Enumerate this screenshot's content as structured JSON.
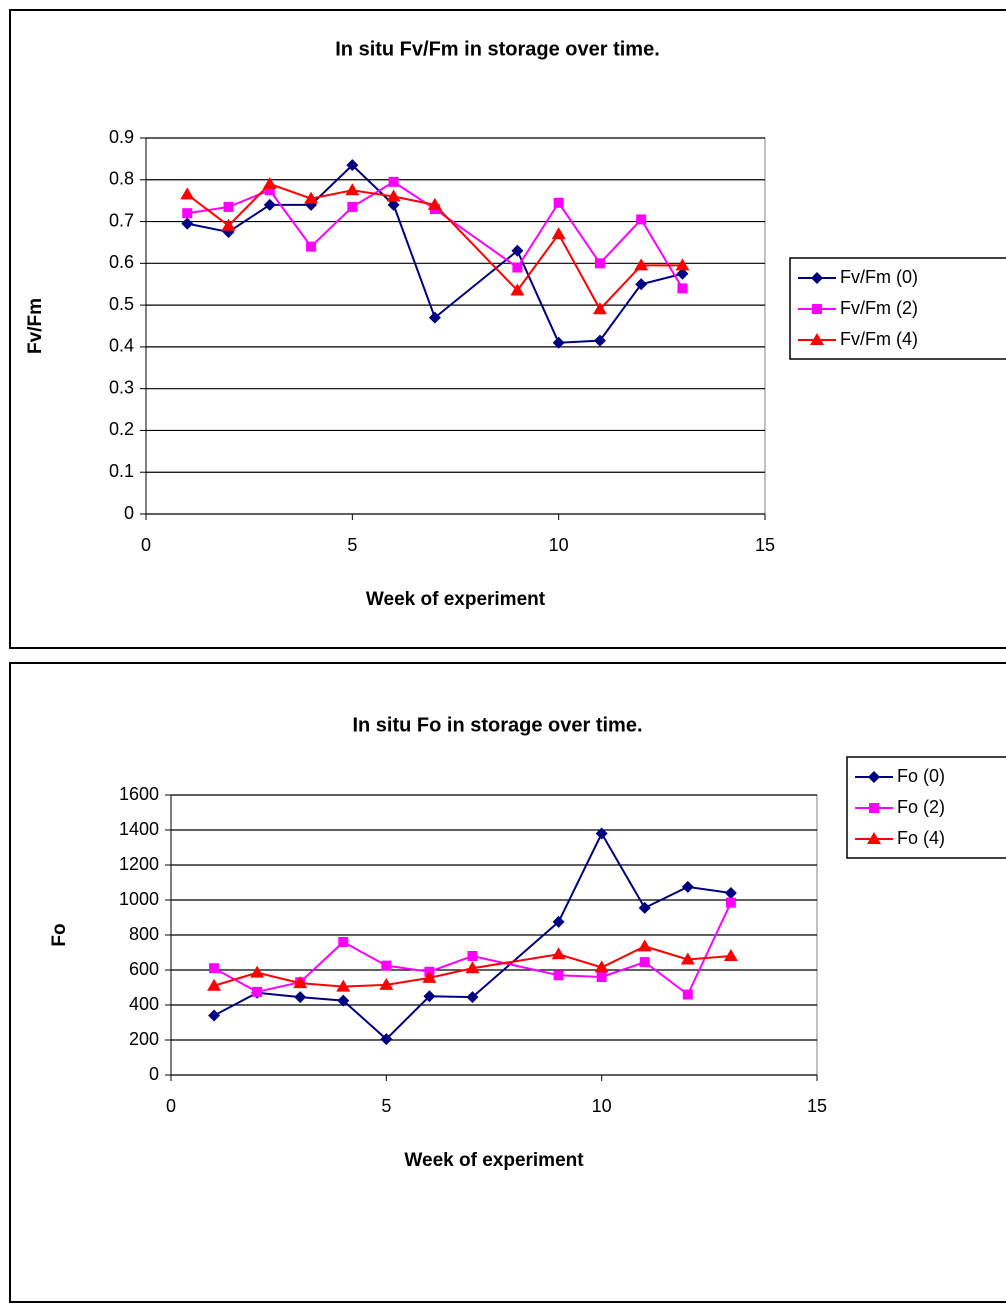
{
  "chart_data": [
    {
      "type": "line",
      "title": "In situ Fv/Fm in storage over time.",
      "xlabel": "Week of experiment",
      "ylabel": "Fv/Fm",
      "x": [
        1,
        2,
        3,
        4,
        5,
        6,
        7,
        9,
        10,
        11,
        12,
        13
      ],
      "series": [
        {
          "name": "Fv/Fm (0)",
          "color": "#000080",
          "marker": "diamond",
          "values": [
            0.695,
            0.675,
            0.74,
            0.74,
            0.835,
            0.74,
            0.47,
            0.63,
            0.41,
            0.415,
            0.55,
            0.575
          ]
        },
        {
          "name": "Fv/Fm (2)",
          "color": "#ff00ff",
          "marker": "square",
          "values": [
            0.72,
            0.735,
            0.775,
            0.64,
            0.735,
            0.795,
            0.73,
            0.59,
            0.745,
            0.6,
            0.705,
            0.54
          ]
        },
        {
          "name": "Fv/Fm (4)",
          "color": "#ff0000",
          "marker": "triangle",
          "values": [
            0.765,
            0.69,
            0.79,
            0.755,
            0.775,
            0.76,
            0.74,
            0.535,
            0.67,
            0.49,
            0.595,
            0.595
          ]
        }
      ],
      "xlim": [
        0,
        15
      ],
      "xticks": [
        0,
        5,
        10,
        15
      ],
      "ylim": [
        0,
        0.9
      ],
      "yticks": [
        0,
        0.1,
        0.2,
        0.3,
        0.4,
        0.5,
        0.6,
        0.7,
        0.8,
        0.9
      ],
      "grid": true,
      "legend": "right"
    },
    {
      "type": "line",
      "title": "In situ Fo in storage over time.",
      "xlabel": "Week of experiment",
      "ylabel": "Fo",
      "x": [
        1,
        2,
        3,
        4,
        5,
        6,
        7,
        9,
        10,
        11,
        12,
        13
      ],
      "series": [
        {
          "name": "Fo (0)",
          "color": "#000080",
          "marker": "diamond",
          "values": [
            340,
            470,
            445,
            425,
            205,
            450,
            445,
            875,
            1380,
            955,
            1075,
            1040
          ]
        },
        {
          "name": "Fo (2)",
          "color": "#ff00ff",
          "marker": "square",
          "values": [
            610,
            475,
            530,
            760,
            625,
            590,
            680,
            570,
            560,
            645,
            460,
            985
          ]
        },
        {
          "name": "Fo (4)",
          "color": "#ff0000",
          "marker": "triangle",
          "values": [
            510,
            585,
            525,
            505,
            515,
            555,
            610,
            690,
            615,
            735,
            660,
            680
          ]
        }
      ],
      "xlim": [
        0,
        15
      ],
      "xticks": [
        0,
        5,
        10,
        15
      ],
      "ylim": [
        0,
        1600
      ],
      "yticks": [
        0,
        200,
        400,
        600,
        800,
        1000,
        1200,
        1400,
        1600
      ],
      "grid": true,
      "legend": "right"
    }
  ]
}
